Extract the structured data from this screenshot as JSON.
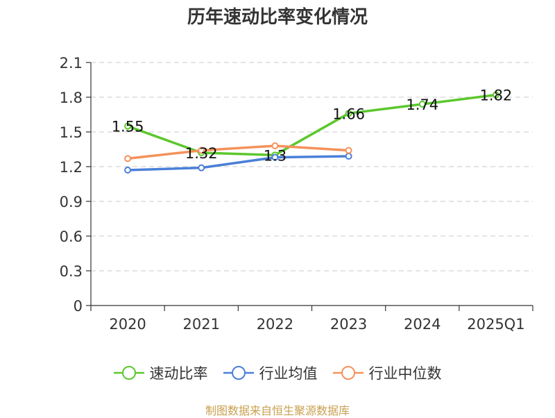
{
  "chart_data": {
    "type": "line",
    "title": "历年速动比率变化情况",
    "categories": [
      "2020",
      "2021",
      "2022",
      "2023",
      "2024",
      "2025Q1"
    ],
    "ylim": [
      0,
      2.1
    ],
    "yticks": [
      "0",
      "0.3",
      "0.6",
      "0.9",
      "1.2",
      "1.5",
      "1.8",
      "2.1"
    ],
    "grid": true,
    "legend_position": "bottom",
    "series": [
      {
        "name": "速动比率",
        "color": "#5cc72e",
        "values": [
          1.55,
          1.32,
          1.3,
          1.66,
          1.74,
          1.82
        ],
        "labels": [
          "1.55",
          "1.32",
          "1.3",
          "1.66",
          "1.74",
          "1.82"
        ]
      },
      {
        "name": "行业均值",
        "color": "#4a7fd8",
        "values": [
          1.17,
          1.19,
          1.28,
          1.29,
          null,
          null
        ]
      },
      {
        "name": "行业中位数",
        "color": "#f5915a",
        "values": [
          1.27,
          1.34,
          1.38,
          1.34,
          null,
          null
        ]
      }
    ]
  },
  "footer": {
    "source_note": "制图数据来自恒生聚源数据库"
  }
}
